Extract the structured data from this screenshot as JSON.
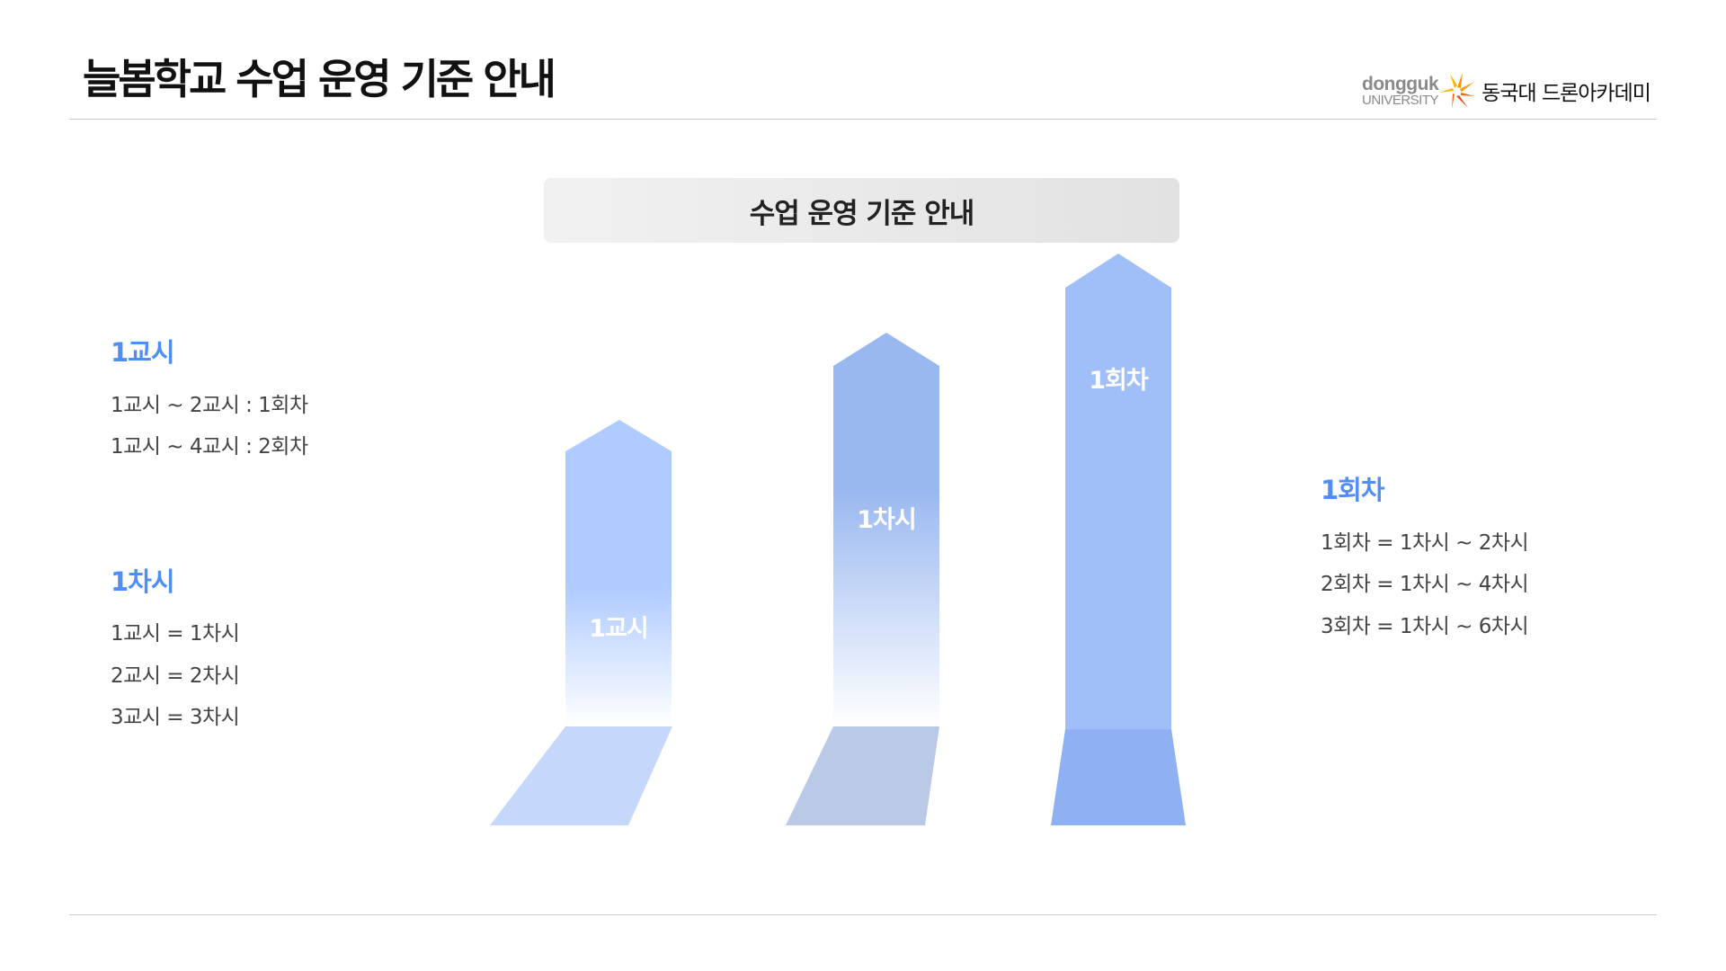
{
  "header": {
    "title": "늘봄학교 수업 운영 기준 안내",
    "logo": {
      "brand_line1": "dongguk",
      "brand_line2": "UNIVERSITY",
      "name": "동국대 드론아카데미"
    }
  },
  "main": {
    "box_title": "수업 운영 기준 안내",
    "left": [
      {
        "heading": "1교시",
        "lines": [
          "1교시 ~ 2교시 : 1회차",
          "1교시 ~ 4교시 : 2회차"
        ]
      },
      {
        "heading": "1차시",
        "lines": [
          "1교시 = 1차시",
          "2교시 = 2차시",
          "3교시 = 3차시"
        ]
      }
    ],
    "right": {
      "heading": "1회차",
      "lines": [
        "1회차 = 1차시 ~ 2차시",
        "2회차 = 1차시 ~ 4차시",
        "3회차 = 1차시 ~ 6차시"
      ]
    },
    "arrows": [
      {
        "label": "1교시",
        "color": "#b0cbff",
        "shadow": "#c5d8fc"
      },
      {
        "label": "1차시",
        "color": "#9ab8f0",
        "shadow": "#b9c9e6"
      },
      {
        "label": "1회차",
        "color": "#a0bff8",
        "shadow": "#8fb0f2"
      }
    ],
    "accent_color": "#4f8ef7"
  }
}
